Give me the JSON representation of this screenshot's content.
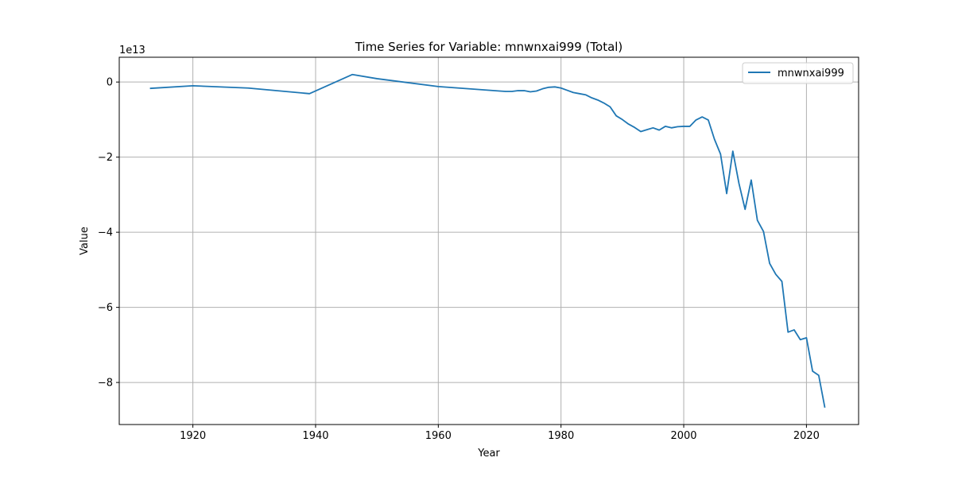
{
  "chart_data": {
    "type": "line",
    "title": "Time Series for Variable: mnwnxai999 (Total)",
    "xlabel": "Year",
    "ylabel": "Value",
    "offset_text": "1e13",
    "xlim": [
      1908,
      2028.5
    ],
    "ylim": [
      -91200000000000.0,
      6600000000000.0
    ],
    "grid": true,
    "legend_position": "top-right",
    "x_ticks": [
      1920,
      1940,
      1960,
      1980,
      2000,
      2020
    ],
    "x_tick_labels": [
      "1920",
      "1940",
      "1960",
      "1980",
      "2000",
      "2020"
    ],
    "y_ticks": [
      0,
      -20000000000000.0,
      -40000000000000.0,
      -60000000000000.0,
      -80000000000000.0
    ],
    "y_tick_labels": [
      "0",
      "−2",
      "−4",
      "−6",
      "−8"
    ],
    "series": [
      {
        "name": "mnwnxai999",
        "color": "#1f77b4",
        "x": [
          1913,
          1920,
          1929,
          1939,
          1946,
          1950,
          1960,
          1970,
          1971,
          1972,
          1973,
          1974,
          1975,
          1976,
          1977,
          1978,
          1979,
          1980,
          1981,
          1982,
          1983,
          1984,
          1985,
          1986,
          1987,
          1988,
          1989,
          1990,
          1991,
          1992,
          1993,
          1994,
          1995,
          1996,
          1997,
          1998,
          1999,
          2000,
          2001,
          2002,
          2003,
          2004,
          2005,
          2006,
          2007,
          2008,
          2009,
          2010,
          2011,
          2012,
          2013,
          2014,
          2015,
          2016,
          2017,
          2018,
          2019,
          2020,
          2021,
          2022,
          2023
        ],
        "y": [
          -1700000000000.0,
          -1000000000000.0,
          -1600000000000.0,
          -3100000000000.0,
          2000000000000.0,
          900000000000.0,
          -1200000000000.0,
          -2400000000000.0,
          -2500000000000.0,
          -2500000000000.0,
          -2300000000000.0,
          -2300000000000.0,
          -2600000000000.0,
          -2400000000000.0,
          -1800000000000.0,
          -1400000000000.0,
          -1300000000000.0,
          -1600000000000.0,
          -2200000000000.0,
          -2800000000000.0,
          -3100000000000.0,
          -3400000000000.0,
          -4200000000000.0,
          -4800000000000.0,
          -5600000000000.0,
          -6600000000000.0,
          -9000000000000.0,
          -10000000000000.0,
          -11200000000000.0,
          -12100000000000.0,
          -13200000000000.0,
          -12700000000000.0,
          -12200000000000.0,
          -12800000000000.0,
          -11800000000000.0,
          -12200000000000.0,
          -11900000000000.0,
          -11800000000000.0,
          -11800000000000.0,
          -10100000000000.0,
          -9300000000000.0,
          -10100000000000.0,
          -15200000000000.0,
          -19200000000000.0,
          -29700000000000.0,
          -18400000000000.0,
          -27000000000000.0,
          -33900000000000.0,
          -26100000000000.0,
          -36800000000000.0,
          -39800000000000.0,
          -48300000000000.0,
          -51200000000000.0,
          -53100000000000.0,
          -66600000000000.0,
          -66000000000000.0,
          -68600000000000.0,
          -68100000000000.0,
          -77000000000000.0,
          -78100000000000.0,
          -86700000000000.0
        ]
      }
    ]
  }
}
